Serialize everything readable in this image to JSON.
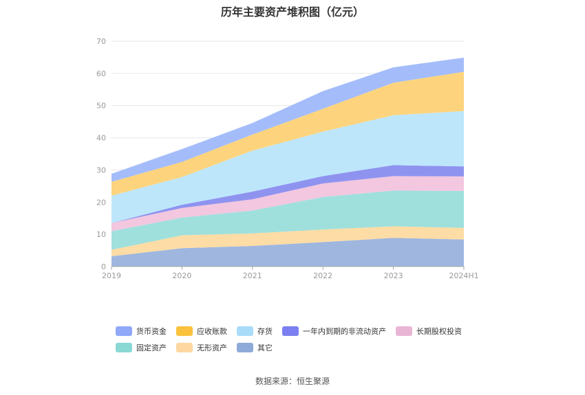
{
  "title": "历年主要资产堆积图（亿元）",
  "source": "数据来源：恒生聚源",
  "chart_data": {
    "type": "area",
    "stacked": true,
    "categories": [
      "2019",
      "2020",
      "2021",
      "2022",
      "2023",
      "2024H1"
    ],
    "ylim": [
      0,
      70
    ],
    "yticks": [
      "0",
      "10",
      "20",
      "30",
      "40",
      "50",
      "60",
      "70"
    ],
    "grid": true,
    "legend_position": "bottom",
    "series": [
      {
        "name": "其它",
        "color": "#9fb7df",
        "values": [
          3.2,
          5.7,
          6.4,
          7.6,
          8.9,
          8.4
        ]
      },
      {
        "name": "无形资产",
        "color": "#fddca5",
        "values": [
          2.0,
          4.0,
          3.9,
          3.9,
          3.6,
          3.6
        ]
      },
      {
        "name": "固定资产",
        "color": "#9fe0dd",
        "values": [
          5.8,
          5.5,
          7.1,
          10.1,
          11.1,
          11.5
        ]
      },
      {
        "name": "长期股权投资",
        "color": "#f2c7df",
        "values": [
          2.5,
          3.0,
          3.5,
          4.2,
          4.5,
          4.5
        ]
      },
      {
        "name": "一年内到期的非流动资产",
        "color": "#8f93f0",
        "values": [
          0.0,
          1.0,
          2.4,
          2.3,
          3.4,
          3.1
        ]
      },
      {
        "name": "存货",
        "color": "#bde6fb",
        "values": [
          8.5,
          8.6,
          12.7,
          13.8,
          15.5,
          17.2
        ]
      },
      {
        "name": "应收账款",
        "color": "#fdd47d",
        "values": [
          4.3,
          4.7,
          5.0,
          7.1,
          10.1,
          12.2
        ]
      },
      {
        "name": "货币资金",
        "color": "#a4bdfa",
        "values": [
          2.5,
          4.0,
          3.6,
          5.5,
          4.8,
          4.4
        ]
      }
    ],
    "legend": [
      {
        "name": "货币资金",
        "color": "#8fa8f8"
      },
      {
        "name": "应收账款",
        "color": "#fac23c"
      },
      {
        "name": "存货",
        "color": "#a8dcf8"
      },
      {
        "name": "一年内到期的非流动资产",
        "color": "#7b7ff0"
      },
      {
        "name": "长期股权投资",
        "color": "#e8b6d4"
      },
      {
        "name": "固定资产",
        "color": "#8ad8d4"
      },
      {
        "name": "无形资产",
        "color": "#fdd6a0"
      },
      {
        "name": "其它",
        "color": "#8eaad8"
      }
    ]
  }
}
